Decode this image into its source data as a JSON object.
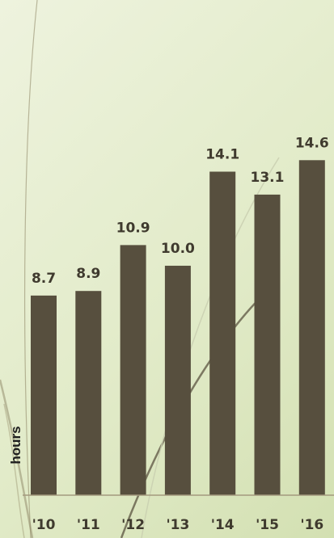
{
  "chart_data": {
    "type": "bar",
    "title": "",
    "xlabel": "",
    "ylabel": "hours",
    "categories": [
      "'10",
      "'11",
      "'12",
      "'13",
      "'14",
      "'15",
      "'16"
    ],
    "values": [
      8.7,
      8.9,
      10.9,
      10.0,
      14.1,
      13.1,
      14.6
    ],
    "value_labels": [
      "8.7",
      "8.9",
      "10.9",
      "10.0",
      "14.1",
      "13.1",
      "14.6"
    ],
    "ylim": [
      0,
      16.3
    ],
    "grid": false,
    "legend": "none",
    "colors": {
      "bar": "#574f3e",
      "label": "#3f3a2e",
      "background": "#e6eecf"
    }
  }
}
